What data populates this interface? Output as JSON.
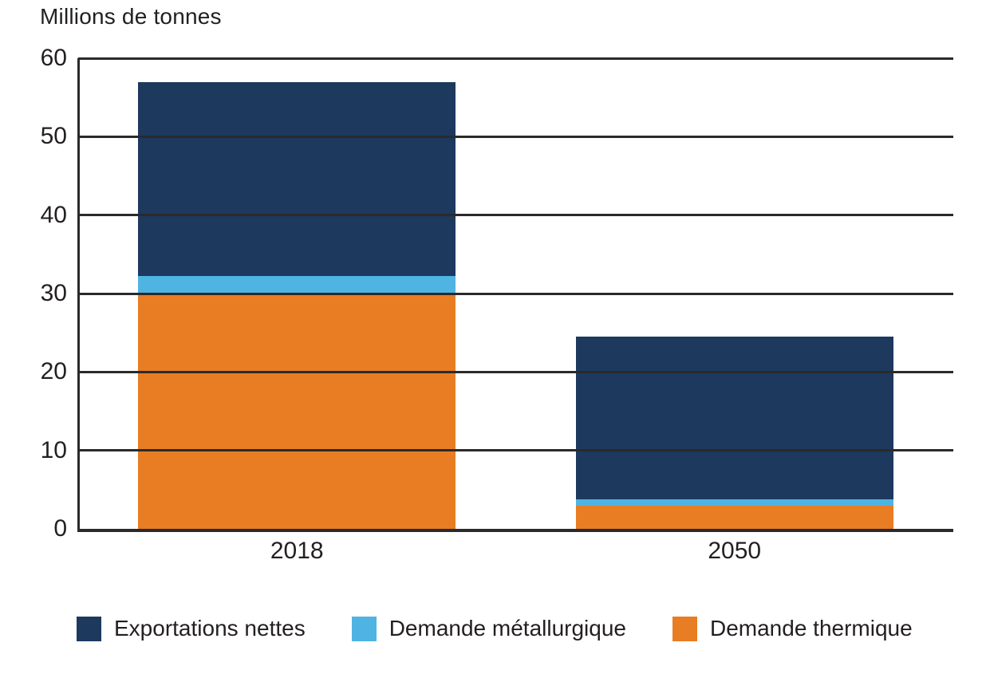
{
  "chart": {
    "background": "#ffffff",
    "text_color": "#231f20",
    "grid_color": "#2a2a2a",
    "axis_color": "#2a2a2a",
    "category_tick_color": "#ffffff"
  },
  "chart_data": {
    "type": "bar",
    "stacked": true,
    "title": "Millions de tonnes",
    "categories": [
      "2018",
      "2050"
    ],
    "series": [
      {
        "name": "Demande thermique",
        "color": "#e87d23",
        "values": [
          30.0,
          2.9
        ]
      },
      {
        "name": "Demande métallurgique",
        "color": "#4fb4e2",
        "values": [
          2.2,
          0.9
        ]
      },
      {
        "name": "Exportations nettes",
        "color": "#1d395e",
        "values": [
          24.8,
          20.7
        ]
      }
    ],
    "totals": [
      57.0,
      24.5
    ],
    "ylim": [
      0,
      60
    ],
    "yticks": [
      0,
      10,
      20,
      30,
      40,
      50,
      60
    ],
    "grid": true,
    "legend_position": "bottom",
    "legend_order": [
      "Exportations nettes",
      "Demande métallurgique",
      "Demande thermique"
    ]
  }
}
